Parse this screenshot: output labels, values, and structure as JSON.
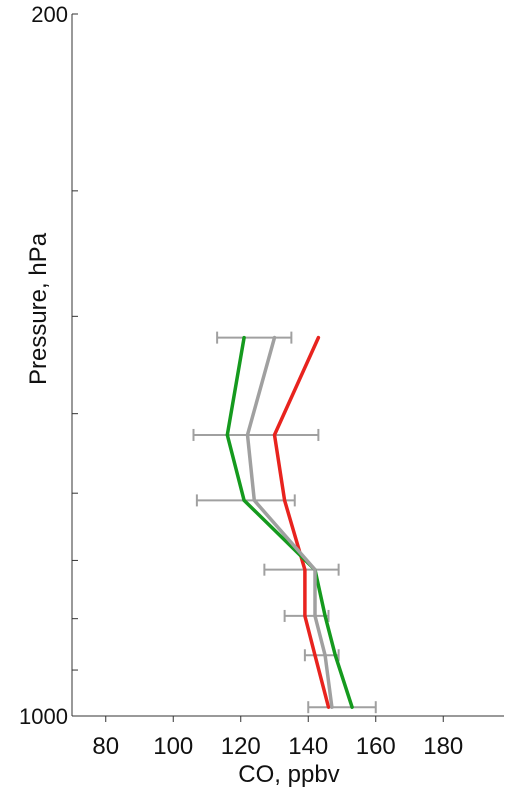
{
  "chart_data": {
    "type": "line",
    "title": "",
    "xlabel": "CO, ppbv",
    "ylabel": "Pressure, hPa",
    "xlim": [
      70,
      198
    ],
    "ylim": [
      1000,
      200
    ],
    "y_scale": "log",
    "grid": false,
    "x_ticks": [
      80,
      100,
      120,
      140,
      160,
      180
    ],
    "x_tick_labels": [
      "80",
      "100",
      "120",
      "140",
      "160",
      "180"
    ],
    "y_ticks": [
      200,
      300,
      400,
      500,
      600,
      700,
      800,
      900,
      1000
    ],
    "y_tick_labels": [
      {
        "value": 200,
        "label": "200"
      },
      {
        "value": 1000,
        "label": "1000"
      }
    ],
    "series": [
      {
        "color": "#e8231e",
        "x": [
          143,
          130,
          133,
          139,
          139,
          142,
          146
        ],
        "y": [
          420,
          525,
          610,
          715,
          795,
          870,
          980
        ]
      },
      {
        "color": "#159a1e",
        "x": [
          121,
          116,
          121,
          142,
          145,
          148,
          153
        ],
        "y": [
          420,
          525,
          610,
          715,
          795,
          870,
          980
        ]
      },
      {
        "color": "#a0a0a0",
        "x": [
          130,
          122,
          124,
          142,
          142,
          145,
          147
        ],
        "y": [
          420,
          525,
          610,
          715,
          795,
          870,
          980
        ]
      }
    ],
    "error_bars": {
      "color": "#a0a0a0",
      "y": [
        420,
        525,
        610,
        715,
        795,
        870,
        980
      ],
      "low": [
        113,
        106,
        107,
        127,
        133,
        139,
        140
      ],
      "high": [
        135,
        143,
        136,
        149,
        146,
        149,
        160
      ]
    }
  }
}
